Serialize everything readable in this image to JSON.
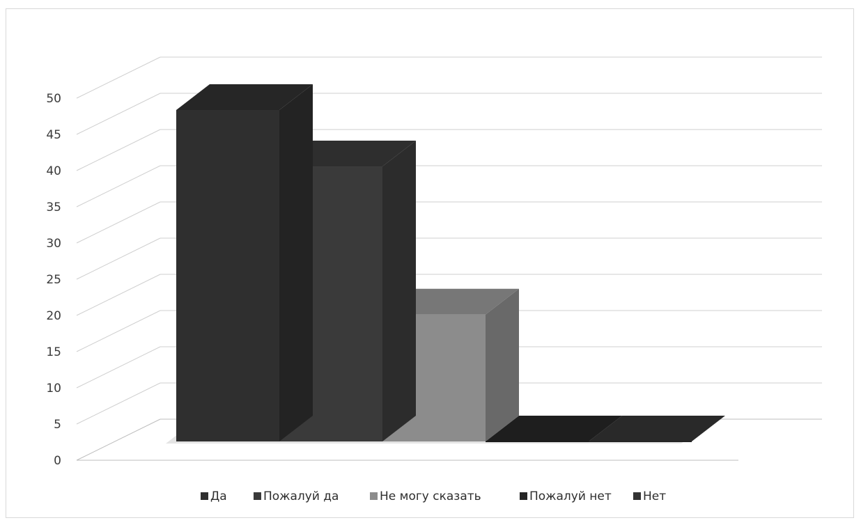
{
  "chart_data": {
    "type": "bar",
    "title": "",
    "xlabel": "",
    "ylabel": "",
    "categories": [
      "Да",
      "Пожалуй да",
      "Не могу сказать",
      "Пожалуй нет",
      "Нет"
    ],
    "series": [
      {
        "name": "Да",
        "values": [
          47,
          null,
          null,
          null,
          null
        ]
      },
      {
        "name": "Пожалуй да",
        "values": [
          null,
          39,
          null,
          null,
          null
        ]
      },
      {
        "name": "Не могу сказать",
        "values": [
          null,
          null,
          18,
          null,
          null
        ]
      },
      {
        "name": "Пожалуй нет",
        "values": [
          null,
          null,
          null,
          0,
          null
        ]
      },
      {
        "name": "Нет",
        "values": [
          null,
          null,
          null,
          null,
          0
        ]
      }
    ],
    "values": [
      47,
      39,
      18,
      0,
      0
    ],
    "ylim": [
      0,
      50
    ],
    "yticks": [
      "0",
      "5",
      "10",
      "15",
      "20",
      "25",
      "30",
      "35",
      "40",
      "45",
      "50"
    ],
    "grid": true,
    "legend_position": "bottom",
    "colors": [
      "#2f2f2f",
      "#3a3a3a",
      "#8c8c8c",
      "#262626",
      "#333333"
    ],
    "legend": [
      "Да",
      "Пожалуй да",
      "Не могу сказать",
      "Пожалуй нет",
      "Нет"
    ]
  }
}
